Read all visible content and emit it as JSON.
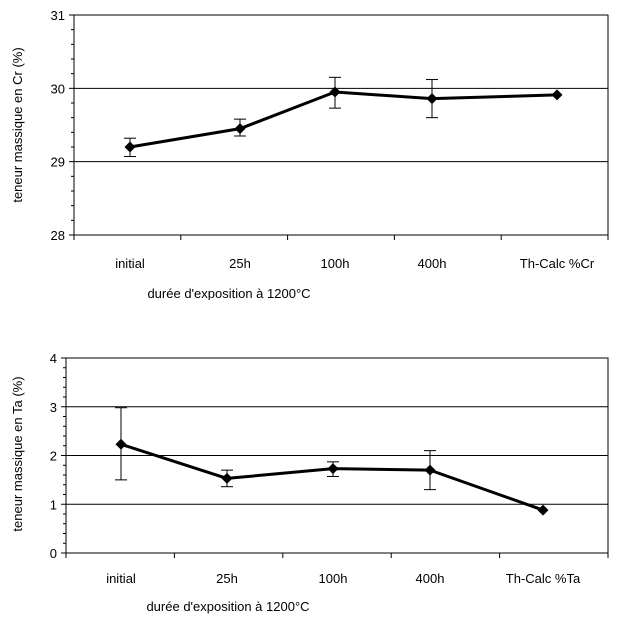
{
  "chart_data": [
    {
      "type": "line",
      "categories": [
        "initial",
        "25h",
        "100h",
        "400h",
        "Th-Calc %Cr"
      ],
      "series": [
        {
          "values": [
            29.2,
            29.45,
            29.95,
            29.86,
            29.91
          ],
          "error_low": [
            29.07,
            29.35,
            29.73,
            29.6,
            null
          ],
          "error_high": [
            29.32,
            29.58,
            30.15,
            30.12,
            null
          ]
        }
      ],
      "xlabel": "durée d'exposition à 1200°C",
      "ylabel": "teneur massique en Cr (%)",
      "ylim": [
        28,
        31
      ],
      "yticks": [
        28,
        29,
        30,
        31
      ],
      "grid": true,
      "color": "#000000"
    },
    {
      "type": "line",
      "categories": [
        "initial",
        "25h",
        "100h",
        "400h",
        "Th-Calc %Ta"
      ],
      "series": [
        {
          "values": [
            2.23,
            1.53,
            1.73,
            1.7,
            0.88
          ],
          "error_low": [
            1.5,
            1.36,
            1.57,
            1.3,
            null
          ],
          "error_high": [
            2.98,
            1.7,
            1.87,
            2.1,
            null
          ]
        }
      ],
      "xlabel": "durée d'exposition à 1200°C",
      "ylabel": "teneur massique en Ta (%)",
      "ylim": [
        0,
        4
      ],
      "yticks": [
        0,
        1,
        2,
        3,
        4
      ],
      "grid": true,
      "color": "#000000"
    }
  ]
}
